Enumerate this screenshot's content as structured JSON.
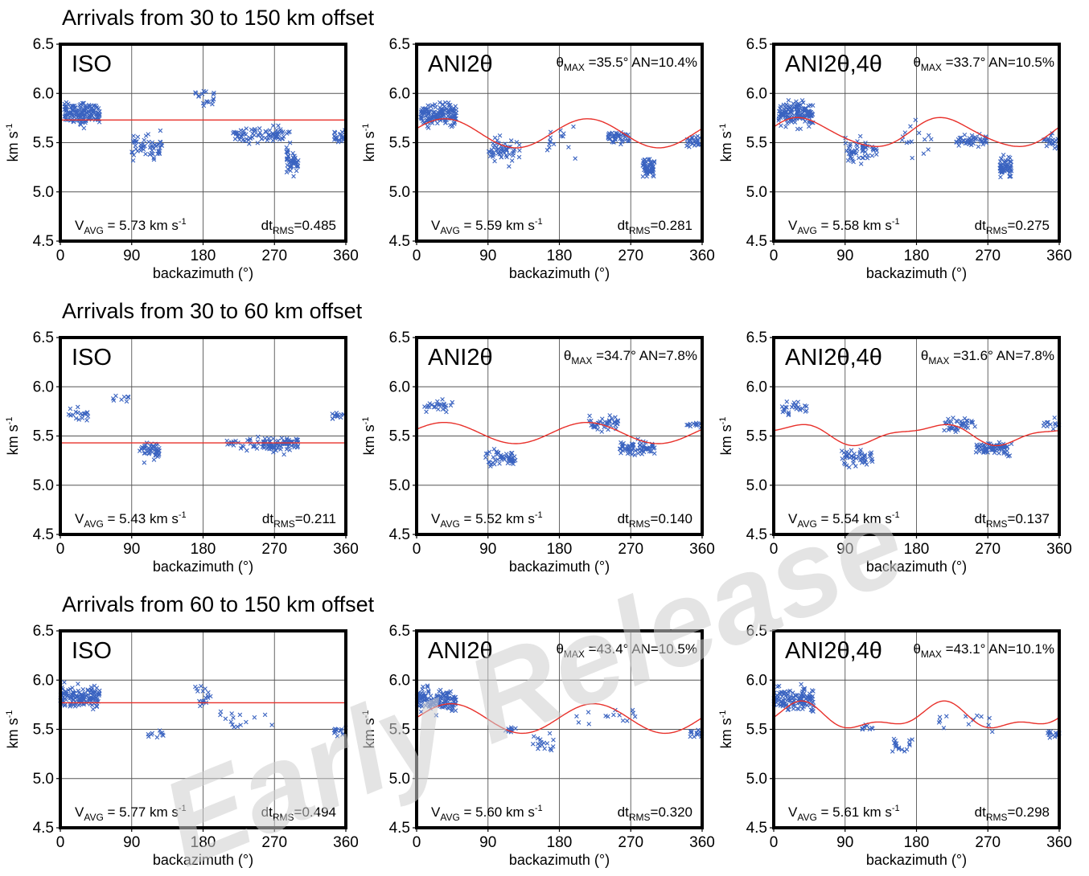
{
  "figure": {
    "watermark": "Early Release"
  },
  "chart_data": [
    {
      "row": 0,
      "row_title": "Arrivals from 30 to 150 km offset",
      "panels": [
        {
          "type": "scatter",
          "model": "ISO",
          "theta_max": "",
          "an": "",
          "vavg": "5.73",
          "dtrms": "0.485",
          "fit": {
            "mean": 5.73,
            "a2": 0,
            "phi2": 0,
            "a4": 0,
            "phi4": 0
          }
        },
        {
          "type": "scatter",
          "model": "ANI2θ",
          "theta_max": "35.5°",
          "an": "10.4%",
          "vavg": "5.59",
          "dtrms": "0.281",
          "fit": {
            "mean": 5.595,
            "a2": 0.295,
            "phi2": 35.5,
            "a4": 0,
            "phi4": 0
          }
        },
        {
          "type": "scatter",
          "model": "ANI2θ,4θ",
          "theta_max": "33.7°",
          "an": "10.5%",
          "vavg": "5.58",
          "dtrms": "0.275",
          "fit": {
            "mean": 5.6,
            "a2": 0.29,
            "phi2": 33.7,
            "a4": 0.03,
            "phi4": 20
          }
        }
      ]
    },
    {
      "row": 1,
      "row_title": "Arrivals from 30 to 60 km offset",
      "panels": [
        {
          "type": "scatter",
          "model": "ISO",
          "theta_max": "",
          "an": "",
          "vavg": "5.43",
          "dtrms": "0.211",
          "fit": {
            "mean": 5.43,
            "a2": 0,
            "phi2": 0,
            "a4": 0,
            "phi4": 0
          }
        },
        {
          "type": "scatter",
          "model": "ANI2θ",
          "theta_max": "34.7°",
          "an": "7.8%",
          "vavg": "5.52",
          "dtrms": "0.140",
          "fit": {
            "mean": 5.53,
            "a2": 0.215,
            "phi2": 34.7,
            "a4": 0,
            "phi4": 0
          }
        },
        {
          "type": "scatter",
          "model": "ANI2θ,4θ",
          "theta_max": "31.6°",
          "an": "7.8%",
          "vavg": "5.54",
          "dtrms": "0.137",
          "fit": {
            "mean": 5.52,
            "a2": 0.18,
            "phi2": 20,
            "a4": 0.07,
            "phi4": 50
          }
        }
      ]
    },
    {
      "row": 2,
      "row_title": "Arrivals from 60 to 150 km offset",
      "panels": [
        {
          "type": "scatter",
          "model": "ISO",
          "theta_max": "",
          "an": "",
          "vavg": "5.77",
          "dtrms": "0.494",
          "fit": {
            "mean": 5.77,
            "a2": 0,
            "phi2": 0,
            "a4": 0,
            "phi4": 0
          }
        },
        {
          "type": "scatter",
          "model": "ANI2θ",
          "theta_max": "43.4°",
          "an": "10.5%",
          "vavg": "5.60",
          "dtrms": "0.320",
          "fit": {
            "mean": 5.61,
            "a2": 0.3,
            "phi2": 43.4,
            "a4": 0,
            "phi4": 0
          }
        },
        {
          "type": "scatter",
          "model": "ANI2θ,4θ",
          "theta_max": "43.1°",
          "an": "10.1%",
          "vavg": "5.61",
          "dtrms": "0.298",
          "fit": {
            "mean": 5.62,
            "a2": 0.22,
            "phi2": 31,
            "a4": 0.12,
            "phi4": 37
          }
        }
      ]
    }
  ],
  "axes": {
    "xlabel": "backazimuth (°)",
    "ylabel": "km s",
    "ylabel_sup": "-1",
    "xlim": [
      0,
      360
    ],
    "ylim": [
      4.5,
      6.5
    ],
    "xticks": [
      0,
      90,
      180,
      270,
      360
    ],
    "yticks": [
      "4.5",
      "5.0",
      "5.5",
      "6.0",
      "6.5"
    ],
    "grid": true,
    "vavg_prefix": "V",
    "vavg_sub": "AVG",
    "vavg_unit": "km s",
    "vavg_unit_sup": "-1",
    "dt_prefix": "dt",
    "dt_sub": "RMS",
    "theta_prefix": "θ",
    "theta_sub": "MAX",
    "an_prefix": "AN="
  },
  "colors": {
    "points": "#3a63c0",
    "fit_line": "#e8302a",
    "frame": "#000000",
    "grid": "#555555"
  },
  "scatter_clusters": [
    [
      [
        [
          5,
          50,
          5.8,
          0.14,
          150
        ],
        [
          90,
          130,
          5.45,
          0.15,
          55
        ],
        [
          170,
          195,
          5.95,
          0.12,
          18
        ],
        [
          215,
          290,
          5.58,
          0.1,
          80
        ],
        [
          285,
          300,
          5.3,
          0.16,
          45
        ],
        [
          345,
          360,
          5.55,
          0.1,
          22
        ]
      ],
      [
        [
          5,
          50,
          5.78,
          0.14,
          150
        ],
        [
          90,
          130,
          5.42,
          0.14,
          55
        ],
        [
          160,
          200,
          5.55,
          0.25,
          15
        ],
        [
          240,
          270,
          5.55,
          0.08,
          40
        ],
        [
          285,
          300,
          5.25,
          0.12,
          55
        ],
        [
          340,
          360,
          5.5,
          0.08,
          22
        ]
      ],
      [
        [
          5,
          50,
          5.8,
          0.14,
          150
        ],
        [
          90,
          130,
          5.42,
          0.14,
          55
        ],
        [
          160,
          200,
          5.55,
          0.25,
          15
        ],
        [
          230,
          270,
          5.52,
          0.08,
          45
        ],
        [
          285,
          300,
          5.25,
          0.12,
          55
        ],
        [
          340,
          360,
          5.52,
          0.08,
          22
        ]
      ]
    ],
    [
      [
        [
          10,
          35,
          5.72,
          0.08,
          20
        ],
        [
          60,
          90,
          5.88,
          0.06,
          8
        ],
        [
          100,
          125,
          5.35,
          0.1,
          45
        ],
        [
          210,
          250,
          5.42,
          0.08,
          25
        ],
        [
          255,
          300,
          5.42,
          0.08,
          80
        ],
        [
          340,
          360,
          5.7,
          0.06,
          12
        ]
      ],
      [
        [
          10,
          45,
          5.8,
          0.08,
          25
        ],
        [
          85,
          125,
          5.28,
          0.1,
          50
        ],
        [
          215,
          255,
          5.62,
          0.08,
          40
        ],
        [
          255,
          300,
          5.38,
          0.08,
          70
        ],
        [
          340,
          360,
          5.62,
          0.06,
          12
        ]
      ],
      [
        [
          10,
          45,
          5.78,
          0.08,
          25
        ],
        [
          85,
          125,
          5.28,
          0.1,
          50
        ],
        [
          215,
          255,
          5.62,
          0.08,
          40
        ],
        [
          255,
          300,
          5.38,
          0.08,
          70
        ],
        [
          340,
          360,
          5.62,
          0.06,
          12
        ]
      ]
    ],
    [
      [
        [
          0,
          50,
          5.82,
          0.14,
          130
        ],
        [
          110,
          130,
          5.45,
          0.04,
          10
        ],
        [
          170,
          190,
          5.85,
          0.14,
          18
        ],
        [
          195,
          270,
          5.6,
          0.15,
          15
        ],
        [
          345,
          360,
          5.48,
          0.05,
          15
        ]
      ],
      [
        [
          0,
          50,
          5.8,
          0.14,
          130
        ],
        [
          110,
          125,
          5.5,
          0.04,
          8
        ],
        [
          145,
          175,
          5.35,
          0.1,
          18
        ],
        [
          200,
          280,
          5.6,
          0.15,
          14
        ],
        [
          345,
          360,
          5.45,
          0.05,
          15
        ]
      ],
      [
        [
          0,
          50,
          5.8,
          0.14,
          130
        ],
        [
          110,
          125,
          5.52,
          0.04,
          8
        ],
        [
          145,
          175,
          5.35,
          0.1,
          18
        ],
        [
          200,
          280,
          5.6,
          0.15,
          14
        ],
        [
          345,
          360,
          5.45,
          0.05,
          15
        ]
      ]
    ]
  ]
}
